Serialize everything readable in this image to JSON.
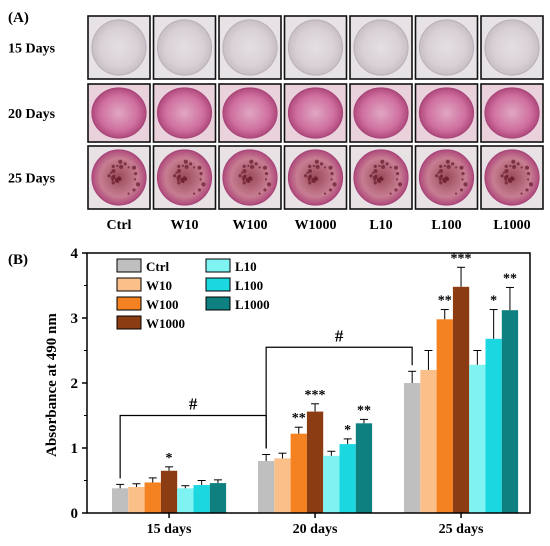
{
  "panel_a": {
    "label": "(A)",
    "row_labels": [
      "15 Days",
      "20 Days",
      "25 Days"
    ],
    "col_labels": [
      "Ctrl",
      "W10",
      "W100",
      "W1000",
      "L10",
      "L100",
      "L1000"
    ],
    "stain_level": [
      [
        0.05,
        0.08,
        0.1,
        0.15,
        0.06,
        0.12,
        0.18
      ],
      [
        0.35,
        0.4,
        0.55,
        0.7,
        0.5,
        0.6,
        0.75
      ],
      [
        0.95,
        0.9,
        0.95,
        1.0,
        0.85,
        0.9,
        0.95
      ]
    ]
  },
  "chart_data": {
    "type": "bar",
    "panel_label": "(B)",
    "ylabel": "Absorbance at 490 nm",
    "xlabel": "",
    "ylim": [
      0,
      4
    ],
    "yticks": [
      "0",
      "1",
      "2",
      "3",
      "4"
    ],
    "categories": [
      "15 days",
      "20 days",
      "25 days"
    ],
    "series": [
      {
        "name": "Ctrl",
        "color": "#bfbfbf",
        "values": [
          0.38,
          0.8,
          2.0
        ],
        "errors": [
          0.06,
          0.1,
          0.18
        ],
        "sig": [
          "",
          "",
          ""
        ]
      },
      {
        "name": "W10",
        "color": "#fbc08a",
        "values": [
          0.4,
          0.84,
          2.2
        ],
        "errors": [
          0.05,
          0.08,
          0.3
        ],
        "sig": [
          "",
          "",
          ""
        ]
      },
      {
        "name": "W100",
        "color": "#f58220",
        "values": [
          0.47,
          1.22,
          2.98
        ],
        "errors": [
          0.07,
          0.1,
          0.15
        ],
        "sig": [
          "",
          "**",
          "**"
        ]
      },
      {
        "name": "W1000",
        "color": "#8b3c12",
        "values": [
          0.65,
          1.56,
          3.48
        ],
        "errors": [
          0.06,
          0.12,
          0.3
        ],
        "sig": [
          "*",
          "***",
          "***"
        ]
      },
      {
        "name": "L10",
        "color": "#7ff2f2",
        "values": [
          0.38,
          0.88,
          2.28
        ],
        "errors": [
          0.04,
          0.07,
          0.22
        ],
        "sig": [
          "",
          "",
          ""
        ]
      },
      {
        "name": "L100",
        "color": "#1ad7e0",
        "values": [
          0.43,
          1.06,
          2.68
        ],
        "errors": [
          0.07,
          0.08,
          0.45
        ],
        "sig": [
          "",
          "*",
          "*"
        ]
      },
      {
        "name": "L1000",
        "color": "#0e8080",
        "values": [
          0.46,
          1.38,
          3.12
        ],
        "errors": [
          0.05,
          0.06,
          0.35
        ],
        "sig": [
          "",
          "**",
          "**"
        ]
      }
    ],
    "brackets": [
      {
        "from_group": 0,
        "to_group": 1,
        "level": 1.5,
        "label": "#"
      },
      {
        "from_group": 1,
        "to_group": 2,
        "level": 2.55,
        "label": "#"
      }
    ],
    "legend": {
      "placement": "top-left",
      "columns": [
        [
          "Ctrl",
          "W10",
          "W100",
          "W1000"
        ],
        [
          "L10",
          "L100",
          "L1000"
        ]
      ]
    },
    "grid": false
  }
}
